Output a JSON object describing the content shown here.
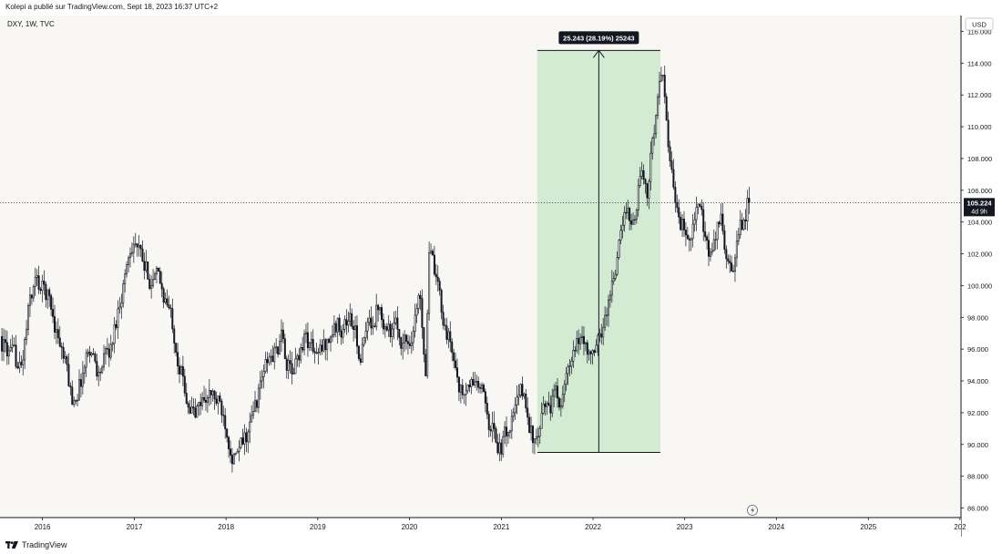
{
  "header": {
    "published_note": "Kolepi a publié sur TradingView.com, Sept 18, 2023 16:37 UTC+2"
  },
  "footer": {
    "logo_text": "TradingView"
  },
  "chart_data": {
    "type": "candlestick",
    "symbol_label": "DXY, 1W, TVC",
    "currency": "USD",
    "y_ticks": [
      "116.000",
      "114.000",
      "112.000",
      "110.000",
      "108.000",
      "106.000",
      "104.000",
      "102.000",
      "100.000",
      "98.000",
      "96.000",
      "94.000",
      "92.000",
      "90.000",
      "88.000",
      "86.000"
    ],
    "ylim": [
      85.4,
      117.0
    ],
    "x_ticks": [
      "2016",
      "2017",
      "2018",
      "2019",
      "2020",
      "2021",
      "2022",
      "2023",
      "2024",
      "2025",
      "202"
    ],
    "x_tick_dates": [
      "2016-01-01",
      "2017-01-01",
      "2018-01-01",
      "2019-01-01",
      "2020-01-01",
      "2021-01-01",
      "2022-01-01",
      "2023-01-01",
      "2024-01-01",
      "2025-01-01",
      "2026-01-01"
    ],
    "xlim": [
      "2015-07-16",
      "2026-01-05"
    ],
    "grid": false,
    "last_price": {
      "value": "105.224",
      "countdown": "4d 9h",
      "y": 105.224
    },
    "price_range_annotation": {
      "label": "25.243 (28.19%) 25243",
      "start_date": "2021-05-24",
      "end_date": "2022-09-26",
      "low": 89.5,
      "high": 114.8,
      "fill_color": "#d3ead3"
    },
    "price_path": [
      [
        "2015-07-20",
        96.8
      ],
      [
        "2015-09-07",
        95.2
      ],
      [
        "2015-10-12",
        94.6
      ],
      [
        "2015-11-16",
        99.0
      ],
      [
        "2015-12-07",
        100.2
      ],
      [
        "2016-01-25",
        99.4
      ],
      [
        "2016-03-07",
        97.0
      ],
      [
        "2016-05-02",
        92.8
      ],
      [
        "2016-06-06",
        94.2
      ],
      [
        "2016-07-11",
        96.3
      ],
      [
        "2016-08-15",
        94.6
      ],
      [
        "2016-10-03",
        96.0
      ],
      [
        "2016-11-14",
        99.8
      ],
      [
        "2016-12-26",
        103.0
      ],
      [
        "2017-01-02",
        103.3
      ],
      [
        "2017-02-13",
        100.8
      ],
      [
        "2017-04-03",
        100.3
      ],
      [
        "2017-05-08",
        99.2
      ],
      [
        "2017-06-12",
        97.2
      ],
      [
        "2017-07-24",
        93.6
      ],
      [
        "2017-09-04",
        91.8
      ],
      [
        "2017-10-16",
        93.2
      ],
      [
        "2017-11-20",
        92.8
      ],
      [
        "2018-01-01",
        91.6
      ],
      [
        "2018-02-12",
        89.1
      ],
      [
        "2018-03-12",
        89.8
      ],
      [
        "2018-04-16",
        91.3
      ],
      [
        "2018-06-04",
        94.6
      ],
      [
        "2018-08-13",
        96.5
      ],
      [
        "2018-09-24",
        94.2
      ],
      [
        "2018-11-12",
        97.0
      ],
      [
        "2019-01-07",
        95.4
      ],
      [
        "2019-03-04",
        97.2
      ],
      [
        "2019-05-13",
        98.0
      ],
      [
        "2019-06-24",
        95.6
      ],
      [
        "2019-09-02",
        99.0
      ],
      [
        "2019-10-21",
        97.4
      ],
      [
        "2019-12-30",
        96.4
      ],
      [
        "2020-02-17",
        99.4
      ],
      [
        "2020-03-09",
        95.0
      ],
      [
        "2020-03-23",
        102.8
      ],
      [
        "2020-04-20",
        99.8
      ],
      [
        "2020-06-08",
        96.8
      ],
      [
        "2020-08-03",
        93.0
      ],
      [
        "2020-09-28",
        94.0
      ],
      [
        "2020-12-14",
        90.4
      ],
      [
        "2021-01-04",
        89.8
      ],
      [
        "2021-03-29",
        93.2
      ],
      [
        "2021-05-24",
        89.7
      ],
      [
        "2021-07-05",
        92.6
      ],
      [
        "2021-09-06",
        93.2
      ],
      [
        "2021-11-22",
        96.8
      ],
      [
        "2022-01-10",
        95.2
      ],
      [
        "2022-03-07",
        99.0
      ],
      [
        "2022-05-09",
        104.2
      ],
      [
        "2022-06-27",
        104.8
      ],
      [
        "2022-07-11",
        107.4
      ],
      [
        "2022-08-08",
        105.6
      ],
      [
        "2022-09-26",
        113.2
      ],
      [
        "2022-10-10",
        112.4
      ],
      [
        "2022-11-14",
        106.6
      ],
      [
        "2023-01-09",
        103.2
      ],
      [
        "2023-02-27",
        105.0
      ],
      [
        "2023-04-10",
        101.3
      ],
      [
        "2023-05-29",
        104.2
      ],
      [
        "2023-07-10",
        100.2
      ],
      [
        "2023-08-14",
        103.2
      ],
      [
        "2023-09-11",
        105.2
      ]
    ]
  }
}
